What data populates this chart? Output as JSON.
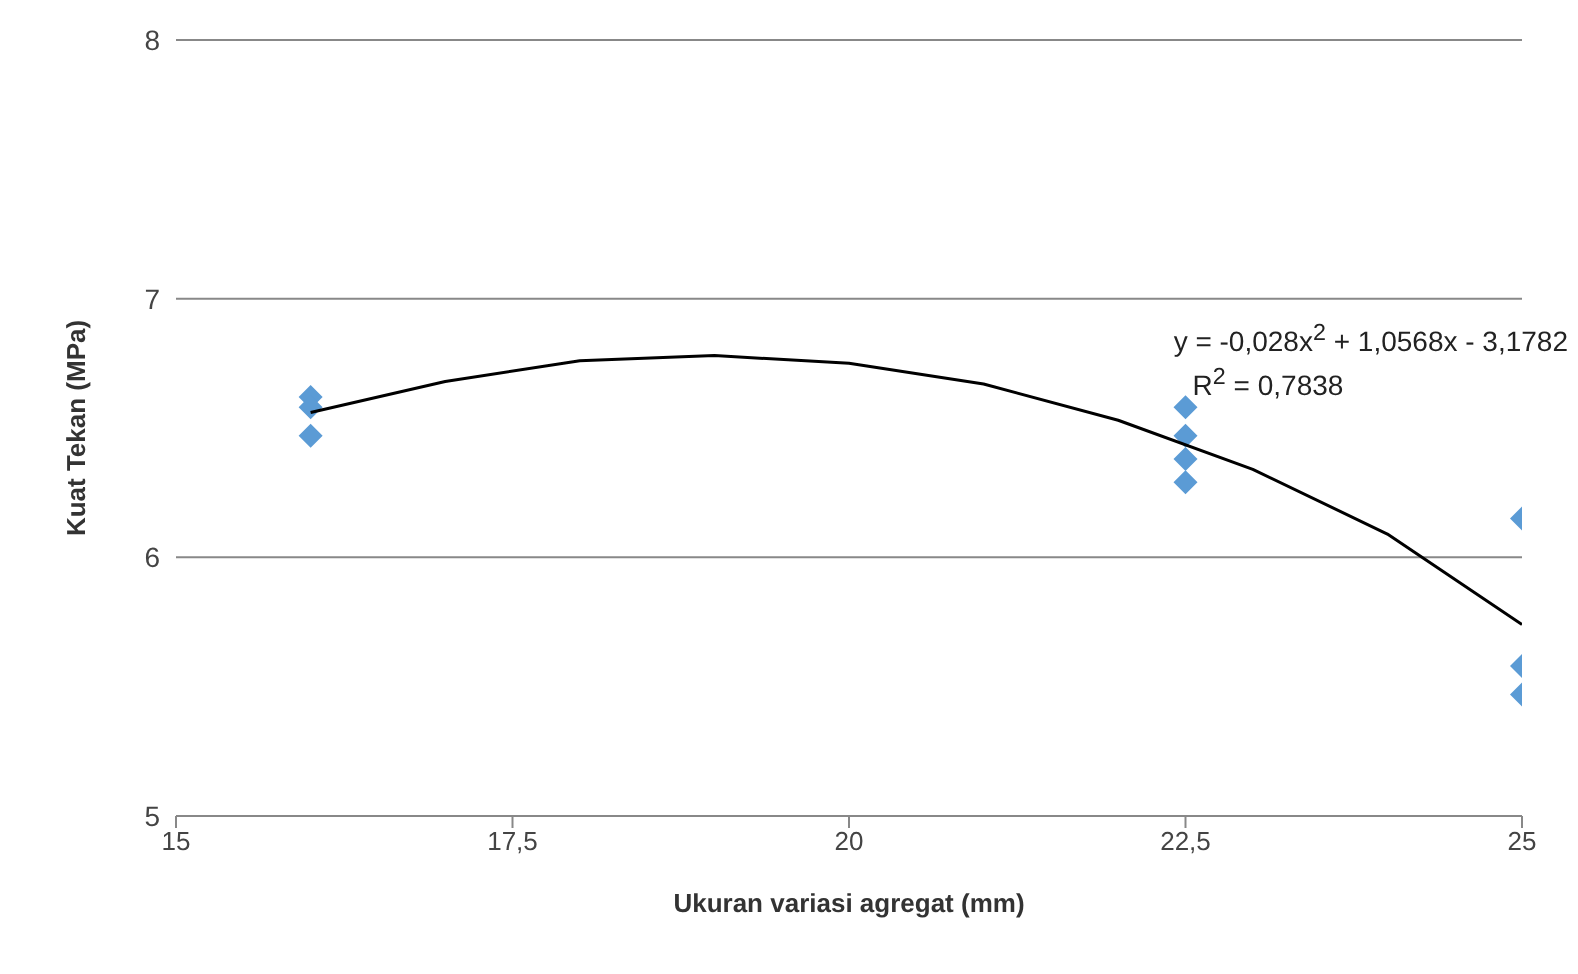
{
  "chart_data": {
    "type": "scatter",
    "xlabel": "Ukuran variasi agregat (mm)",
    "ylabel": "Kuat Tekan (MPa)",
    "xlim": [
      15,
      25
    ],
    "xticks": [
      15,
      {
        "value": 17.5,
        "label": "17,5"
      },
      20,
      {
        "value": 22.5,
        "label": "22,5"
      },
      25
    ],
    "ylim": [
      5,
      8
    ],
    "yticks": [
      5,
      6,
      7,
      8
    ],
    "grid": "y",
    "series": [
      {
        "color": "#5b9bd5",
        "marker": "diamond",
        "x": [
          16,
          16,
          16,
          22.5,
          22.5,
          22.5,
          22.5,
          25,
          25,
          25
        ],
        "values": [
          6.62,
          6.58,
          6.47,
          6.58,
          6.47,
          6.38,
          6.29,
          6.15,
          5.58,
          5.47
        ]
      },
      {
        "type": "line",
        "color": "#000000",
        "marker": "none",
        "line_style": "solid",
        "x": [
          16,
          17,
          18,
          19,
          20,
          21,
          22,
          23,
          24,
          25
        ],
        "values": [
          6.56,
          6.68,
          6.76,
          6.78,
          6.75,
          6.67,
          6.53,
          6.34,
          6.09,
          5.74
        ]
      }
    ],
    "annotations": [
      "y = -0,028x$^{2}$ + 1,0568x - 3,1782",
      "R$^{2}$ = 0,7838"
    ]
  }
}
